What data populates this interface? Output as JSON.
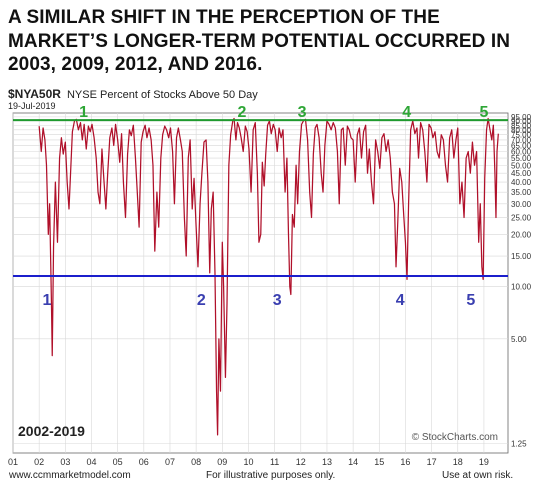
{
  "headline": {
    "line1": "A SIMILAR SHIFT IN THE PERCEPTION OF THE",
    "line2": "MARKET’S LONGER-TERM POTENTIAL OCCURRED IN",
    "line3": "2003, 2009, 2012, AND 2016."
  },
  "chart_header": {
    "symbol": "$NYA50R",
    "name": "NYSE Percent of Stocks Above 50 Day",
    "date": "19-Jul-2019"
  },
  "footer": {
    "left": "www.ccmmarketmodel.com",
    "center": "For illustrative purposes only.",
    "right": "Use at own risk."
  },
  "colors": {
    "series": "#b0102a",
    "upper_line": "#1f9a2e",
    "lower_line": "#1b1ecc",
    "upper_numbers": "#2ea636",
    "lower_numbers": "#3a3fb0",
    "grid": "#d8d8d8"
  },
  "chart_data": {
    "type": "line",
    "series": [
      {
        "values": [
          [
            2002.0,
            84
          ],
          [
            2002.08,
            60
          ],
          [
            2002.15,
            82
          ],
          [
            2002.22,
            70
          ],
          [
            2002.28,
            50
          ],
          [
            2002.35,
            20
          ],
          [
            2002.4,
            30
          ],
          [
            2002.47,
            8
          ],
          [
            2002.5,
            4
          ],
          [
            2002.55,
            17
          ],
          [
            2002.62,
            40
          ],
          [
            2002.7,
            18
          ],
          [
            2002.78,
            55
          ],
          [
            2002.85,
            72
          ],
          [
            2002.92,
            58
          ],
          [
            2003.0,
            68
          ],
          [
            2003.07,
            40
          ],
          [
            2003.14,
            28
          ],
          [
            2003.2,
            45
          ],
          [
            2003.27,
            78
          ],
          [
            2003.35,
            90
          ],
          [
            2003.42,
            92
          ],
          [
            2003.5,
            80
          ],
          [
            2003.58,
            88
          ],
          [
            2003.65,
            70
          ],
          [
            2003.72,
            86
          ],
          [
            2003.8,
            62
          ],
          [
            2003.88,
            84
          ],
          [
            2003.95,
            78
          ],
          [
            2004.02,
            86
          ],
          [
            2004.1,
            72
          ],
          [
            2004.18,
            55
          ],
          [
            2004.25,
            35
          ],
          [
            2004.32,
            30
          ],
          [
            2004.4,
            62
          ],
          [
            2004.48,
            40
          ],
          [
            2004.55,
            28
          ],
          [
            2004.62,
            45
          ],
          [
            2004.7,
            72
          ],
          [
            2004.78,
            82
          ],
          [
            2004.85,
            65
          ],
          [
            2004.92,
            86
          ],
          [
            2005.0,
            70
          ],
          [
            2005.08,
            52
          ],
          [
            2005.15,
            76
          ],
          [
            2005.22,
            40
          ],
          [
            2005.3,
            25
          ],
          [
            2005.38,
            58
          ],
          [
            2005.45,
            80
          ],
          [
            2005.52,
            74
          ],
          [
            2005.6,
            85
          ],
          [
            2005.68,
            55
          ],
          [
            2005.75,
            35
          ],
          [
            2005.82,
            22
          ],
          [
            2005.9,
            68
          ],
          [
            2005.97,
            78
          ],
          [
            2006.05,
            85
          ],
          [
            2006.12,
            72
          ],
          [
            2006.2,
            82
          ],
          [
            2006.28,
            70
          ],
          [
            2006.35,
            50
          ],
          [
            2006.42,
            16
          ],
          [
            2006.5,
            35
          ],
          [
            2006.57,
            22
          ],
          [
            2006.65,
            55
          ],
          [
            2006.72,
            75
          ],
          [
            2006.8,
            84
          ],
          [
            2006.87,
            80
          ],
          [
            2006.95,
            72
          ],
          [
            2007.02,
            82
          ],
          [
            2007.1,
            60
          ],
          [
            2007.17,
            30
          ],
          [
            2007.25,
            72
          ],
          [
            2007.32,
            82
          ],
          [
            2007.4,
            70
          ],
          [
            2007.47,
            60
          ],
          [
            2007.55,
            25
          ],
          [
            2007.62,
            15
          ],
          [
            2007.7,
            55
          ],
          [
            2007.77,
            70
          ],
          [
            2007.85,
            28
          ],
          [
            2007.92,
            42
          ],
          [
            2008.0,
            22
          ],
          [
            2008.07,
            13
          ],
          [
            2008.15,
            30
          ],
          [
            2008.22,
            45
          ],
          [
            2008.3,
            68
          ],
          [
            2008.38,
            70
          ],
          [
            2008.45,
            40
          ],
          [
            2008.52,
            12
          ],
          [
            2008.58,
            28
          ],
          [
            2008.65,
            35
          ],
          [
            2008.72,
            12
          ],
          [
            2008.78,
            2.5
          ],
          [
            2008.82,
            1.4
          ],
          [
            2008.87,
            5
          ],
          [
            2008.93,
            2.5
          ],
          [
            2009.0,
            18
          ],
          [
            2009.05,
            10
          ],
          [
            2009.12,
            3
          ],
          [
            2009.18,
            8
          ],
          [
            2009.25,
            50
          ],
          [
            2009.32,
            75
          ],
          [
            2009.4,
            90
          ],
          [
            2009.45,
            93
          ],
          [
            2009.52,
            70
          ],
          [
            2009.58,
            88
          ],
          [
            2009.65,
            82
          ],
          [
            2009.72,
            72
          ],
          [
            2009.8,
            60
          ],
          [
            2009.88,
            84
          ],
          [
            2009.95,
            78
          ],
          [
            2010.02,
            62
          ],
          [
            2010.1,
            35
          ],
          [
            2010.18,
            80
          ],
          [
            2010.26,
            88
          ],
          [
            2010.34,
            45
          ],
          [
            2010.4,
            18
          ],
          [
            2010.47,
            20
          ],
          [
            2010.53,
            52
          ],
          [
            2010.6,
            38
          ],
          [
            2010.66,
            58
          ],
          [
            2010.73,
            85
          ],
          [
            2010.8,
            90
          ],
          [
            2010.87,
            76
          ],
          [
            2010.95,
            86
          ],
          [
            2011.02,
            80
          ],
          [
            2011.1,
            60
          ],
          [
            2011.17,
            82
          ],
          [
            2011.25,
            72
          ],
          [
            2011.32,
            80
          ],
          [
            2011.4,
            35
          ],
          [
            2011.47,
            55
          ],
          [
            2011.53,
            20
          ],
          [
            2011.58,
            10
          ],
          [
            2011.62,
            9
          ],
          [
            2011.68,
            26
          ],
          [
            2011.75,
            22
          ],
          [
            2011.82,
            50
          ],
          [
            2011.88,
            30
          ],
          [
            2011.95,
            60
          ],
          [
            2012.03,
            86
          ],
          [
            2012.1,
            90
          ],
          [
            2012.18,
            92
          ],
          [
            2012.26,
            70
          ],
          [
            2012.34,
            35
          ],
          [
            2012.41,
            25
          ],
          [
            2012.48,
            58
          ],
          [
            2012.55,
            82
          ],
          [
            2012.62,
            86
          ],
          [
            2012.7,
            72
          ],
          [
            2012.78,
            45
          ],
          [
            2012.85,
            35
          ],
          [
            2012.92,
            65
          ],
          [
            2013.0,
            90
          ],
          [
            2013.08,
            86
          ],
          [
            2013.16,
            80
          ],
          [
            2013.24,
            88
          ],
          [
            2013.32,
            82
          ],
          [
            2013.4,
            60
          ],
          [
            2013.47,
            30
          ],
          [
            2013.55,
            80
          ],
          [
            2013.62,
            82
          ],
          [
            2013.7,
            50
          ],
          [
            2013.78,
            84
          ],
          [
            2013.85,
            80
          ],
          [
            2013.92,
            72
          ],
          [
            2014.0,
            70
          ],
          [
            2014.08,
            40
          ],
          [
            2014.16,
            75
          ],
          [
            2014.24,
            82
          ],
          [
            2014.32,
            55
          ],
          [
            2014.4,
            78
          ],
          [
            2014.48,
            85
          ],
          [
            2014.55,
            45
          ],
          [
            2014.62,
            62
          ],
          [
            2014.7,
            40
          ],
          [
            2014.78,
            30
          ],
          [
            2014.86,
            70
          ],
          [
            2014.94,
            60
          ],
          [
            2015.02,
            48
          ],
          [
            2015.1,
            72
          ],
          [
            2015.18,
            76
          ],
          [
            2015.26,
            60
          ],
          [
            2015.34,
            70
          ],
          [
            2015.42,
            55
          ],
          [
            2015.5,
            35
          ],
          [
            2015.58,
            30
          ],
          [
            2015.64,
            13
          ],
          [
            2015.7,
            22
          ],
          [
            2015.78,
            48
          ],
          [
            2015.86,
            40
          ],
          [
            2015.94,
            25
          ],
          [
            2016.0,
            18
          ],
          [
            2016.06,
            11
          ],
          [
            2016.12,
            30
          ],
          [
            2016.2,
            80
          ],
          [
            2016.28,
            90
          ],
          [
            2016.36,
            76
          ],
          [
            2016.44,
            82
          ],
          [
            2016.5,
            55
          ],
          [
            2016.58,
            88
          ],
          [
            2016.66,
            80
          ],
          [
            2016.74,
            60
          ],
          [
            2016.82,
            40
          ],
          [
            2016.9,
            86
          ],
          [
            2016.98,
            82
          ],
          [
            2017.05,
            72
          ],
          [
            2017.13,
            78
          ],
          [
            2017.21,
            60
          ],
          [
            2017.29,
            55
          ],
          [
            2017.37,
            75
          ],
          [
            2017.45,
            70
          ],
          [
            2017.53,
            50
          ],
          [
            2017.61,
            40
          ],
          [
            2017.69,
            72
          ],
          [
            2017.77,
            80
          ],
          [
            2017.85,
            55
          ],
          [
            2017.93,
            70
          ],
          [
            2018.0,
            82
          ],
          [
            2018.08,
            30
          ],
          [
            2018.16,
            40
          ],
          [
            2018.24,
            25
          ],
          [
            2018.32,
            55
          ],
          [
            2018.4,
            60
          ],
          [
            2018.48,
            45
          ],
          [
            2018.56,
            68
          ],
          [
            2018.64,
            50
          ],
          [
            2018.72,
            60
          ],
          [
            2018.8,
            18
          ],
          [
            2018.86,
            30
          ],
          [
            2018.92,
            13
          ],
          [
            2018.97,
            11
          ],
          [
            2019.03,
            42
          ],
          [
            2019.1,
            80
          ],
          [
            2019.16,
            93
          ],
          [
            2019.22,
            82
          ],
          [
            2019.3,
            70
          ],
          [
            2019.36,
            85
          ],
          [
            2019.42,
            45
          ],
          [
            2019.46,
            25
          ],
          [
            2019.5,
            60
          ],
          [
            2019.55,
            76
          ]
        ]
      }
    ],
    "xlabel": "",
    "ylabel": "",
    "xlim": [
      2001.0,
      2019.92
    ],
    "ylim": [
      1.1,
      100
    ],
    "y_scale": "log",
    "y_ticks": [
      95,
      90,
      85,
      80,
      75,
      70,
      65,
      60,
      55,
      50,
      45,
      40,
      35,
      30,
      25,
      20,
      15,
      10,
      5,
      1.25
    ],
    "y_tick_labels": [
      "95.00",
      "90.00",
      "85.00",
      "80.00",
      "75.00",
      "70.00",
      "65.00",
      "60.00",
      "55.00",
      "50.00",
      "45.00",
      "40.00",
      "35.00",
      "30.00",
      "25.00",
      "20.00",
      "15.00",
      "10.00",
      "5.00",
      "1.25"
    ],
    "x_ticks": [
      2001,
      2002,
      2003,
      2004,
      2005,
      2006,
      2007,
      2008,
      2009,
      2010,
      2011,
      2012,
      2013,
      2014,
      2015,
      2016,
      2017,
      2018,
      2019
    ],
    "x_tick_labels": [
      "01",
      "02",
      "03",
      "04",
      "05",
      "06",
      "07",
      "08",
      "09",
      "10",
      "11",
      "12",
      "13",
      "14",
      "15",
      "16",
      "17",
      "18",
      "19"
    ],
    "horizontal_lines": [
      {
        "value": 91,
        "color": "upper_line"
      },
      {
        "value": 11.5,
        "color": "lower_line"
      }
    ],
    "annotations": {
      "upper_numbers": [
        {
          "label": "1",
          "x": 2003.7
        },
        {
          "label": "2",
          "x": 2009.75
        },
        {
          "label": "3",
          "x": 2012.05
        },
        {
          "label": "4",
          "x": 2016.05
        },
        {
          "label": "5",
          "x": 2019.0
        }
      ],
      "lower_numbers": [
        {
          "label": "1",
          "x": 2002.3
        },
        {
          "label": "2",
          "x": 2008.2
        },
        {
          "label": "3",
          "x": 2011.1
        },
        {
          "label": "4",
          "x": 2015.8
        },
        {
          "label": "5",
          "x": 2018.5
        }
      ],
      "period_label": "2002-2019",
      "watermark": "© StockCharts.com"
    },
    "grid": true,
    "legend": "none"
  }
}
